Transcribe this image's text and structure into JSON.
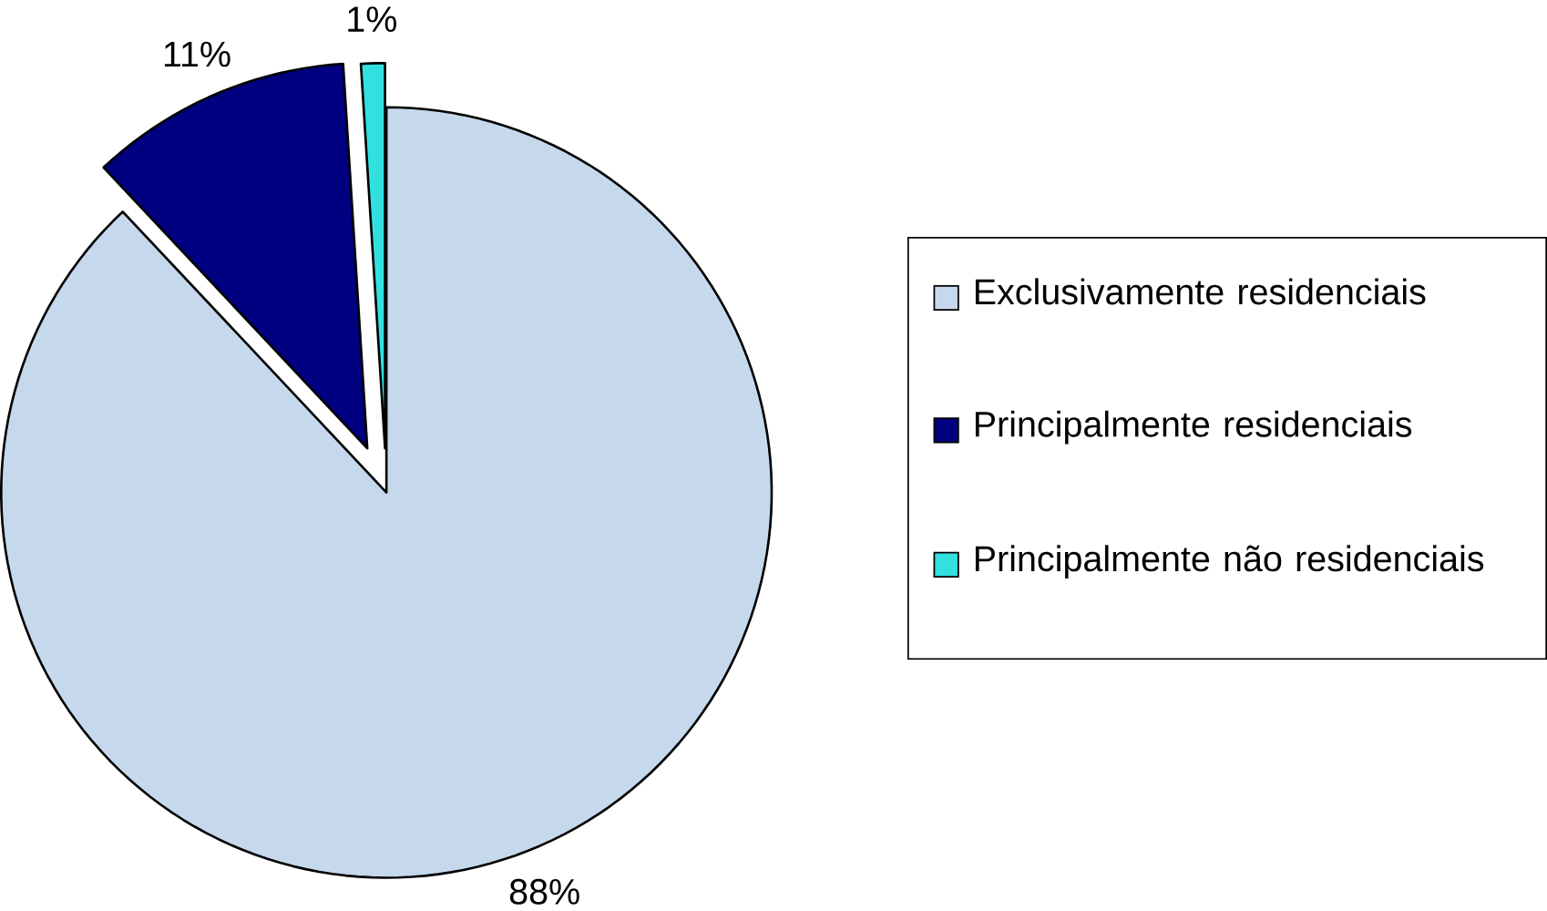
{
  "chart_data": {
    "type": "pie",
    "categories": [
      "Exclusivamente residenciais",
      "Principalmente residenciais",
      "Principalmente não residenciais"
    ],
    "values": [
      88,
      11,
      1
    ],
    "value_labels": [
      "88%",
      "11%",
      "1%"
    ],
    "colors": [
      "#c6d9ec",
      "#000080",
      "#33e0e0"
    ],
    "legend": "right"
  }
}
